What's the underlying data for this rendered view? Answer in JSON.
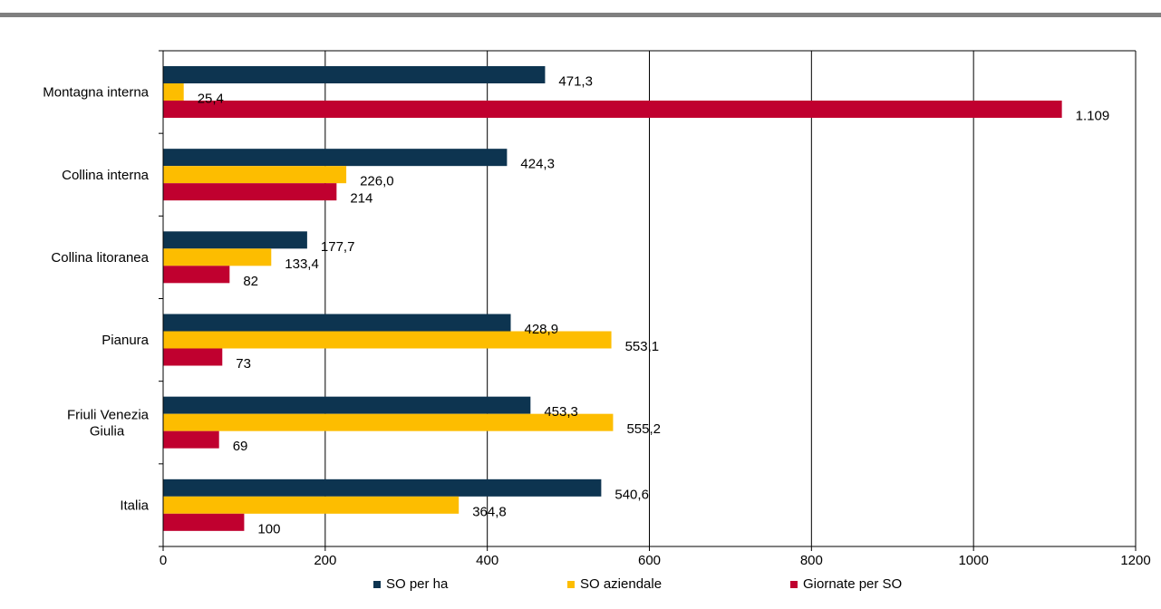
{
  "chart_data": {
    "type": "bar",
    "orientation": "horizontal",
    "categories": [
      "Montagna interna",
      "Collina interna",
      "Collina litoranea",
      "Pianura",
      "Friuli Venezia Giulia",
      "Italia"
    ],
    "series": [
      {
        "name": "SO per ha",
        "color": "#0d3450",
        "values": [
          471.3,
          424.3,
          177.7,
          428.9,
          453.3,
          540.6
        ],
        "labels": [
          "471,3",
          "424,3",
          "177,7",
          "428,9",
          "453,3",
          "540,6"
        ]
      },
      {
        "name": "SO aziendale",
        "color": "#fdbd00",
        "values": [
          25.4,
          226.0,
          133.4,
          553.1,
          555.2,
          364.8
        ],
        "labels": [
          "25,4",
          "226,0",
          "133,4",
          "553,1",
          "555,2",
          "364,8"
        ]
      },
      {
        "name": "Giornate per SO",
        "color": "#c0002f",
        "values": [
          1109,
          214,
          82,
          73,
          69,
          100
        ],
        "labels": [
          "1.109",
          "214",
          "82",
          "73",
          "69",
          "100"
        ]
      }
    ],
    "xlim": [
      0,
      1200
    ],
    "xticks": [
      0,
      200,
      400,
      600,
      800,
      1000,
      1200
    ],
    "xtick_labels": [
      "0",
      "200",
      "400",
      "600",
      "800",
      "1000",
      "1200"
    ],
    "grid": "vertical",
    "legend_position": "bottom"
  }
}
